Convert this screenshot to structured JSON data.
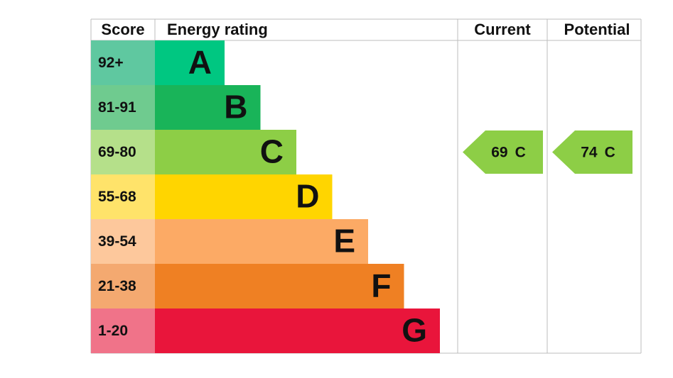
{
  "headers": {
    "score": "Score",
    "energy_rating": "Energy rating",
    "current": "Current",
    "potential": "Potential"
  },
  "bands": [
    {
      "score": "92+",
      "rating": "A",
      "color": "#00c781",
      "score_color": "#5fc8a0"
    },
    {
      "score": "81-91",
      "rating": "B",
      "color": "#19b459",
      "score_color": "#6fcb8f"
    },
    {
      "score": "69-80",
      "rating": "C",
      "color": "#8dce46",
      "score_color": "#b5e08a"
    },
    {
      "score": "55-68",
      "rating": "D",
      "color": "#ffd500",
      "score_color": "#ffe36a"
    },
    {
      "score": "39-54",
      "rating": "E",
      "color": "#fcaa65",
      "score_color": "#fdc89c"
    },
    {
      "score": "21-38",
      "rating": "F",
      "color": "#ef8023",
      "score_color": "#f4a970"
    },
    {
      "score": "1-20",
      "rating": "G",
      "color": "#e9153b",
      "score_color": "#f07389"
    }
  ],
  "current": {
    "score": 69,
    "rating": "C"
  },
  "potential": {
    "score": 74,
    "rating": "C"
  }
}
